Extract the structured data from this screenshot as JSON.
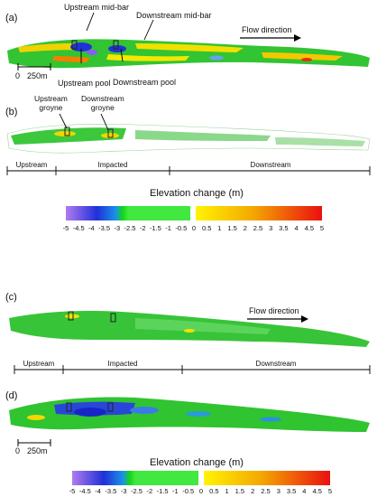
{
  "panels": {
    "a": {
      "label": "(a)"
    },
    "b": {
      "label": "(b)"
    },
    "c": {
      "label": "(c)"
    },
    "d": {
      "label": "(d)"
    }
  },
  "annotations": {
    "upstream_mid_bar": "Upstream mid-bar",
    "downstream_mid_bar": "Downstream mid-bar",
    "flow_direction": "Flow direction",
    "upstream_pool": "Upstream pool",
    "downstream_pool": "Downstream pool",
    "upstream_groyne": "Upstream\ngroyne",
    "downstream_groyne": "Downstream\ngroyne",
    "scale_zero": "0",
    "scale_len": "250m"
  },
  "reaches": {
    "upstream": "Upstream",
    "impacted": "Impacted",
    "downstream": "Downstream"
  },
  "legend": {
    "title": "Elevation change (m)",
    "ticks": [
      "-5",
      "-4.5",
      "-4",
      "-3.5",
      "-3",
      "-2.5",
      "-2",
      "-1.5",
      "-1",
      "-0.5",
      "0",
      "0.5",
      "1",
      "1.5",
      "2",
      "2.5",
      "3",
      "3.5",
      "4",
      "4.5",
      "5"
    ]
  },
  "colors": {
    "deep_erosion": "#8a5cf2",
    "erosion": "#1f2fd8",
    "near_zero": "#2ccf2c",
    "deposition_low": "#f2e400",
    "deposition_high": "#e8121a"
  }
}
